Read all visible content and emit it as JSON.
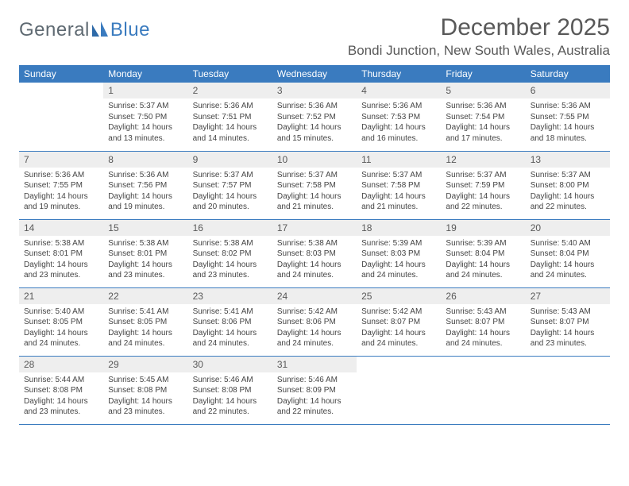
{
  "brand": {
    "part1": "General",
    "part2": "Blue"
  },
  "title": "December 2025",
  "subtitle": "Bondi Junction, New South Wales, Australia",
  "colors": {
    "header_bg": "#3a7bbf",
    "header_text": "#ffffff",
    "daynum_bg": "#eeeeee",
    "text": "#444444",
    "row_divider": "#3a7bbf",
    "background": "#ffffff"
  },
  "layout": {
    "columns": 7,
    "rows": 5,
    "first_weekday_index": 1
  },
  "typography": {
    "title_fontsize": 30,
    "subtitle_fontsize": 17,
    "header_fontsize": 12,
    "daynum_fontsize": 12,
    "cell_fontsize": 10
  },
  "weekdays": [
    "Sunday",
    "Monday",
    "Tuesday",
    "Wednesday",
    "Thursday",
    "Friday",
    "Saturday"
  ],
  "days": [
    {
      "n": 1,
      "sunrise": "5:37 AM",
      "sunset": "7:50 PM",
      "daylight": "14 hours and 13 minutes."
    },
    {
      "n": 2,
      "sunrise": "5:36 AM",
      "sunset": "7:51 PM",
      "daylight": "14 hours and 14 minutes."
    },
    {
      "n": 3,
      "sunrise": "5:36 AM",
      "sunset": "7:52 PM",
      "daylight": "14 hours and 15 minutes."
    },
    {
      "n": 4,
      "sunrise": "5:36 AM",
      "sunset": "7:53 PM",
      "daylight": "14 hours and 16 minutes."
    },
    {
      "n": 5,
      "sunrise": "5:36 AM",
      "sunset": "7:54 PM",
      "daylight": "14 hours and 17 minutes."
    },
    {
      "n": 6,
      "sunrise": "5:36 AM",
      "sunset": "7:55 PM",
      "daylight": "14 hours and 18 minutes."
    },
    {
      "n": 7,
      "sunrise": "5:36 AM",
      "sunset": "7:55 PM",
      "daylight": "14 hours and 19 minutes."
    },
    {
      "n": 8,
      "sunrise": "5:36 AM",
      "sunset": "7:56 PM",
      "daylight": "14 hours and 19 minutes."
    },
    {
      "n": 9,
      "sunrise": "5:37 AM",
      "sunset": "7:57 PM",
      "daylight": "14 hours and 20 minutes."
    },
    {
      "n": 10,
      "sunrise": "5:37 AM",
      "sunset": "7:58 PM",
      "daylight": "14 hours and 21 minutes."
    },
    {
      "n": 11,
      "sunrise": "5:37 AM",
      "sunset": "7:58 PM",
      "daylight": "14 hours and 21 minutes."
    },
    {
      "n": 12,
      "sunrise": "5:37 AM",
      "sunset": "7:59 PM",
      "daylight": "14 hours and 22 minutes."
    },
    {
      "n": 13,
      "sunrise": "5:37 AM",
      "sunset": "8:00 PM",
      "daylight": "14 hours and 22 minutes."
    },
    {
      "n": 14,
      "sunrise": "5:38 AM",
      "sunset": "8:01 PM",
      "daylight": "14 hours and 23 minutes."
    },
    {
      "n": 15,
      "sunrise": "5:38 AM",
      "sunset": "8:01 PM",
      "daylight": "14 hours and 23 minutes."
    },
    {
      "n": 16,
      "sunrise": "5:38 AM",
      "sunset": "8:02 PM",
      "daylight": "14 hours and 23 minutes."
    },
    {
      "n": 17,
      "sunrise": "5:38 AM",
      "sunset": "8:03 PM",
      "daylight": "14 hours and 24 minutes."
    },
    {
      "n": 18,
      "sunrise": "5:39 AM",
      "sunset": "8:03 PM",
      "daylight": "14 hours and 24 minutes."
    },
    {
      "n": 19,
      "sunrise": "5:39 AM",
      "sunset": "8:04 PM",
      "daylight": "14 hours and 24 minutes."
    },
    {
      "n": 20,
      "sunrise": "5:40 AM",
      "sunset": "8:04 PM",
      "daylight": "14 hours and 24 minutes."
    },
    {
      "n": 21,
      "sunrise": "5:40 AM",
      "sunset": "8:05 PM",
      "daylight": "14 hours and 24 minutes."
    },
    {
      "n": 22,
      "sunrise": "5:41 AM",
      "sunset": "8:05 PM",
      "daylight": "14 hours and 24 minutes."
    },
    {
      "n": 23,
      "sunrise": "5:41 AM",
      "sunset": "8:06 PM",
      "daylight": "14 hours and 24 minutes."
    },
    {
      "n": 24,
      "sunrise": "5:42 AM",
      "sunset": "8:06 PM",
      "daylight": "14 hours and 24 minutes."
    },
    {
      "n": 25,
      "sunrise": "5:42 AM",
      "sunset": "8:07 PM",
      "daylight": "14 hours and 24 minutes."
    },
    {
      "n": 26,
      "sunrise": "5:43 AM",
      "sunset": "8:07 PM",
      "daylight": "14 hours and 24 minutes."
    },
    {
      "n": 27,
      "sunrise": "5:43 AM",
      "sunset": "8:07 PM",
      "daylight": "14 hours and 23 minutes."
    },
    {
      "n": 28,
      "sunrise": "5:44 AM",
      "sunset": "8:08 PM",
      "daylight": "14 hours and 23 minutes."
    },
    {
      "n": 29,
      "sunrise": "5:45 AM",
      "sunset": "8:08 PM",
      "daylight": "14 hours and 23 minutes."
    },
    {
      "n": 30,
      "sunrise": "5:46 AM",
      "sunset": "8:08 PM",
      "daylight": "14 hours and 22 minutes."
    },
    {
      "n": 31,
      "sunrise": "5:46 AM",
      "sunset": "8:09 PM",
      "daylight": "14 hours and 22 minutes."
    }
  ],
  "labels": {
    "sunrise": "Sunrise:",
    "sunset": "Sunset:",
    "daylight": "Daylight:"
  }
}
